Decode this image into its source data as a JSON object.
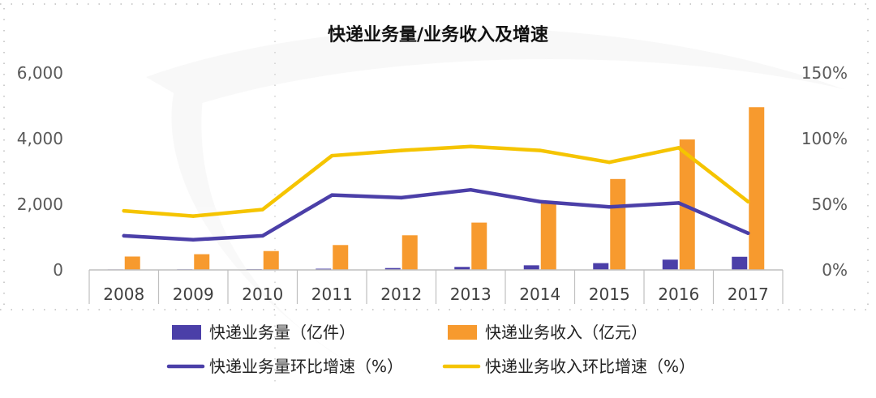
{
  "chart_data": {
    "type": "bar+line",
    "title": "快递业务量/业务收入及增速",
    "categories": [
      "2008",
      "2009",
      "2010",
      "2011",
      "2012",
      "2013",
      "2014",
      "2015",
      "2016",
      "2017"
    ],
    "series": [
      {
        "name": "快递业务量（亿件）",
        "type": "bar",
        "axis": "left",
        "color": "#4B3FA8",
        "values": [
          15,
          19,
          23,
          37,
          57,
          92,
          140,
          207,
          313,
          401
        ]
      },
      {
        "name": "快递业务收入（亿元）",
        "type": "bar",
        "axis": "left",
        "color": "#F79A2E",
        "values": [
          408,
          479,
          575,
          758,
          1055,
          1442,
          2045,
          2770,
          3974,
          4957
        ]
      },
      {
        "name": "快递业务量环比增速（%）",
        "type": "line",
        "axis": "right",
        "color": "#4B3FA8",
        "values": [
          26,
          23,
          26,
          57,
          55,
          61,
          52,
          48,
          51,
          28
        ]
      },
      {
        "name": "快递业务收入环比增速（%）",
        "type": "line",
        "axis": "right",
        "color": "#F5C400",
        "values": [
          45,
          41,
          46,
          87,
          91,
          94,
          91,
          82,
          93,
          52
        ]
      }
    ],
    "y_left": {
      "ticks": [
        0,
        2000,
        4000,
        6000
      ],
      "tick_labels": [
        "0",
        "2,000",
        "4,000",
        "6,000"
      ],
      "ylim": [
        0,
        6000
      ]
    },
    "y_right": {
      "ticks": [
        0,
        50,
        100,
        150
      ],
      "tick_labels": [
        "0%",
        "50%",
        "100%",
        "150%"
      ],
      "ylim": [
        0,
        150
      ]
    },
    "legend": {
      "position": "bottom",
      "columns": 2
    },
    "grid": false
  }
}
